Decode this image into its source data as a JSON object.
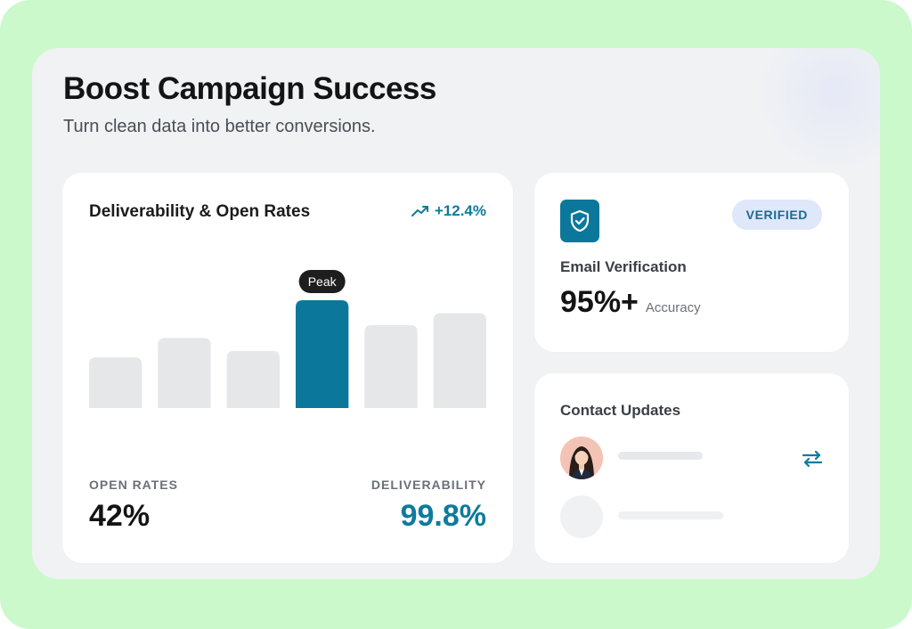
{
  "header": {
    "title": "Boost Campaign Success",
    "subtitle": "Turn clean data into better conversions."
  },
  "chart_card": {
    "title": "Deliverability & Open Rates",
    "trend": "+12.4%",
    "trend_icon": "trending-up-icon",
    "open_rates_label": "OPEN RATES",
    "open_rates_value": "42%",
    "deliverability_label": "DELIVERABILITY",
    "deliverability_value": "99.8%"
  },
  "chart_data": {
    "type": "bar",
    "categories": [
      "",
      "",
      "",
      "",
      "",
      ""
    ],
    "values": [
      47,
      65,
      53,
      100,
      77,
      88
    ],
    "highlight_index": 3,
    "highlight_label": "Peak",
    "ylim": [
      0,
      100
    ],
    "colors": {
      "bar": "#e6e7e9",
      "highlight": "#0b789b"
    },
    "grid": false,
    "legend": "none"
  },
  "verification_card": {
    "icon": "shield-check-icon",
    "badge": "VERIFIED",
    "title": "Email Verification",
    "value": "95%+",
    "subtext": "Accuracy"
  },
  "contacts_card": {
    "title": "Contact Updates",
    "sync_icon": "sync-arrows-icon"
  },
  "colors": {
    "accent": "#0b789b",
    "backdrop": "#ccf9cc",
    "panel": "#f0f2f4",
    "badge_bg": "#dfe7fb"
  }
}
